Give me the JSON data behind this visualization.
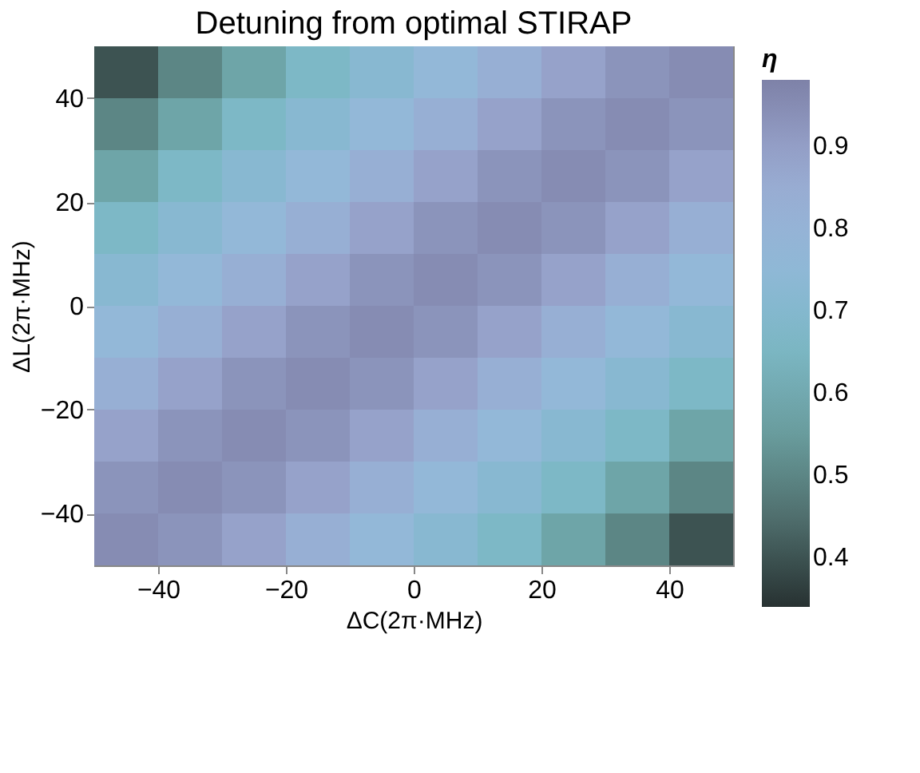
{
  "chart_data": {
    "type": "heatmap",
    "title": "Detuning from optimal STIRAP",
    "xlabel": "ΔC(2π·MHz)",
    "ylabel": "ΔL(2π·MHz)",
    "clabel": "η",
    "x": [
      -45,
      -35,
      -25,
      -15,
      -5,
      5,
      15,
      25,
      35,
      45
    ],
    "y": [
      45,
      35,
      25,
      15,
      5,
      -5,
      -15,
      -25,
      -35,
      -45
    ],
    "xlim": [
      -50,
      50
    ],
    "ylim": [
      -50,
      50
    ],
    "xticks": [
      -40,
      -20,
      0,
      20,
      40
    ],
    "yticks": [
      -40,
      -20,
      0,
      20,
      40
    ],
    "clim": [
      0.34,
      0.98
    ],
    "cticks": [
      0.4,
      0.5,
      0.6,
      0.7,
      0.8,
      0.9
    ],
    "cells": [
      [
        0.4,
        0.5,
        0.58,
        0.66,
        0.72,
        0.77,
        0.83,
        0.89,
        0.93,
        0.95
      ],
      [
        0.5,
        0.58,
        0.66,
        0.72,
        0.77,
        0.83,
        0.89,
        0.93,
        0.95,
        0.93
      ],
      [
        0.58,
        0.66,
        0.72,
        0.77,
        0.83,
        0.89,
        0.93,
        0.95,
        0.93,
        0.89
      ],
      [
        0.66,
        0.72,
        0.77,
        0.83,
        0.89,
        0.93,
        0.95,
        0.93,
        0.89,
        0.83
      ],
      [
        0.72,
        0.77,
        0.83,
        0.89,
        0.93,
        0.95,
        0.93,
        0.89,
        0.83,
        0.77
      ],
      [
        0.77,
        0.83,
        0.89,
        0.93,
        0.95,
        0.93,
        0.89,
        0.83,
        0.77,
        0.72
      ],
      [
        0.83,
        0.89,
        0.93,
        0.95,
        0.93,
        0.89,
        0.83,
        0.77,
        0.72,
        0.66
      ],
      [
        0.89,
        0.93,
        0.95,
        0.93,
        0.89,
        0.83,
        0.77,
        0.72,
        0.66,
        0.58
      ],
      [
        0.93,
        0.95,
        0.93,
        0.89,
        0.83,
        0.77,
        0.72,
        0.66,
        0.58,
        0.5
      ],
      [
        0.95,
        0.93,
        0.89,
        0.83,
        0.77,
        0.72,
        0.66,
        0.58,
        0.5,
        0.4
      ]
    ]
  }
}
